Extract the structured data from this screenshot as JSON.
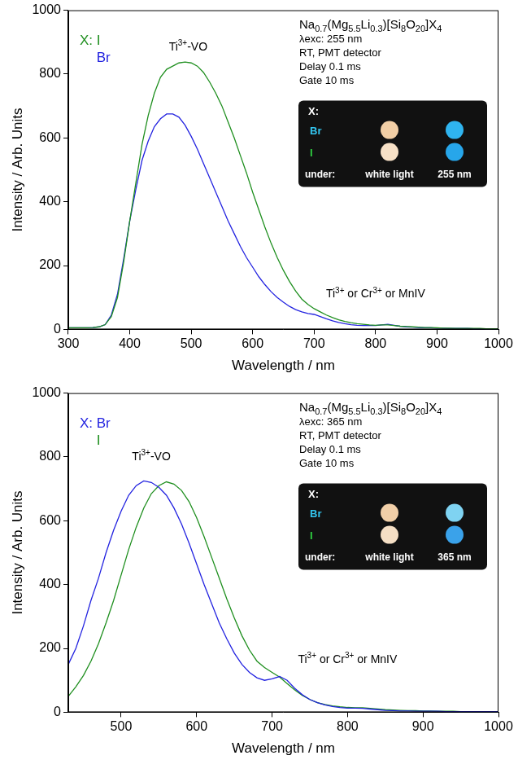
{
  "chart_data": [
    {
      "type": "line",
      "x_label": "Wavelength / nm",
      "y_label": "Intensity / Arb. Units",
      "xlim": [
        300,
        1000
      ],
      "ylim": [
        0,
        1000
      ],
      "xticks": [
        300,
        400,
        500,
        600,
        700,
        800,
        900,
        1000
      ],
      "yticks": [
        0,
        200,
        400,
        600,
        800,
        1000
      ],
      "grid": false,
      "legend": "top left",
      "legend_title": "X:",
      "info": [
        "Na0.7(Mg5.5Li0.3)[Si8O20]X4",
        "λexc: 255 nm",
        "RT, PMT detector",
        "Delay 0.1 ms",
        "Gate 10 ms"
      ],
      "inset": {
        "title": "X:",
        "rows": [
          "Br",
          "I"
        ],
        "footer": [
          "under:",
          "white light",
          "255 nm"
        ]
      },
      "annotations": [
        {
          "text": "Ti3+-VO",
          "x": 495,
          "y": 875
        },
        {
          "text": "Ti3+ or Cr3+ or MnIV",
          "x": 800,
          "y": 100
        }
      ],
      "x": [
        300,
        310,
        320,
        330,
        340,
        350,
        360,
        370,
        380,
        390,
        400,
        410,
        420,
        430,
        440,
        450,
        460,
        470,
        480,
        490,
        500,
        510,
        520,
        530,
        540,
        550,
        560,
        570,
        580,
        590,
        600,
        610,
        620,
        630,
        640,
        650,
        660,
        670,
        680,
        690,
        700,
        710,
        720,
        730,
        740,
        750,
        760,
        770,
        780,
        790,
        800,
        810,
        820,
        830,
        840,
        850,
        860,
        870,
        880,
        890,
        900,
        910,
        920,
        930,
        940,
        950,
        960,
        970,
        980,
        990,
        1000
      ],
      "series": [
        {
          "name": "I",
          "color": "#1f8f1f",
          "values": [
            5,
            5,
            5,
            5,
            6,
            8,
            15,
            40,
            100,
            210,
            340,
            460,
            580,
            670,
            740,
            790,
            815,
            825,
            835,
            838,
            835,
            825,
            805,
            775,
            740,
            700,
            650,
            600,
            545,
            490,
            430,
            375,
            320,
            270,
            225,
            185,
            150,
            120,
            95,
            78,
            65,
            55,
            45,
            37,
            30,
            25,
            21,
            18,
            16,
            14,
            13,
            14,
            14,
            12,
            10,
            9,
            8,
            7,
            6,
            6,
            5,
            4,
            4,
            3,
            3,
            3,
            3,
            3,
            2,
            2,
            2
          ]
        },
        {
          "name": "Br",
          "color": "#2323e0",
          "values": [
            5,
            5,
            5,
            5,
            6,
            8,
            15,
            45,
            110,
            220,
            340,
            440,
            530,
            590,
            635,
            660,
            675,
            675,
            665,
            640,
            605,
            565,
            520,
            475,
            430,
            385,
            340,
            300,
            260,
            225,
            195,
            165,
            140,
            118,
            100,
            85,
            72,
            62,
            55,
            50,
            47,
            40,
            33,
            27,
            22,
            18,
            15,
            13,
            12,
            12,
            12,
            14,
            16,
            13,
            10,
            8,
            7,
            6,
            5,
            5,
            4,
            4,
            3,
            3,
            3,
            3,
            2,
            2,
            2,
            2,
            2
          ]
        }
      ]
    },
    {
      "type": "line",
      "x_label": "Wavelength / nm",
      "y_label": "Intensity / Arb. Units",
      "xlim": [
        430,
        1000
      ],
      "ylim": [
        0,
        1000
      ],
      "xticks": [
        500,
        600,
        700,
        800,
        900,
        1000
      ],
      "yticks": [
        0,
        200,
        400,
        600,
        800,
        1000
      ],
      "grid": false,
      "legend": "top left",
      "legend_title": "X:",
      "info": [
        "Na0.7(Mg5.5Li0.3)[Si8O20]X4",
        "λexc: 365 nm",
        "RT, PMT detector",
        "Delay 0.1 ms",
        "Gate 10 ms"
      ],
      "inset": {
        "title": "X:",
        "rows": [
          "Br",
          "I"
        ],
        "footer": [
          "under:",
          "white light",
          "365 nm"
        ]
      },
      "annotations": [
        {
          "text": "Ti3+-VO",
          "x": 540,
          "y": 790
        },
        {
          "text": "Ti3+ or Cr3+ or MnIV",
          "x": 800,
          "y": 155
        }
      ],
      "x": [
        430,
        440,
        450,
        460,
        470,
        480,
        490,
        500,
        510,
        520,
        530,
        540,
        550,
        560,
        570,
        580,
        590,
        600,
        610,
        620,
        630,
        640,
        650,
        660,
        670,
        680,
        690,
        700,
        710,
        720,
        730,
        740,
        750,
        760,
        770,
        780,
        790,
        800,
        810,
        820,
        830,
        840,
        850,
        860,
        870,
        880,
        890,
        900,
        910,
        920,
        930,
        940,
        950,
        960,
        970,
        980,
        990,
        1000
      ],
      "series": [
        {
          "name": "Br",
          "color": "#2323e0",
          "values": [
            150,
            200,
            270,
            350,
            420,
            500,
            570,
            630,
            680,
            710,
            725,
            720,
            705,
            680,
            640,
            590,
            530,
            465,
            400,
            340,
            280,
            230,
            185,
            150,
            125,
            108,
            100,
            105,
            112,
            100,
            75,
            55,
            40,
            30,
            23,
            18,
            15,
            13,
            13,
            12,
            10,
            8,
            6,
            5,
            4,
            4,
            3,
            3,
            3,
            3,
            2,
            2,
            2,
            2,
            2,
            2,
            2,
            2
          ]
        },
        {
          "name": "I",
          "color": "#1f8f1f",
          "values": [
            50,
            80,
            115,
            160,
            215,
            280,
            350,
            430,
            510,
            580,
            640,
            685,
            710,
            722,
            715,
            695,
            660,
            610,
            550,
            485,
            420,
            355,
            295,
            240,
            195,
            160,
            140,
            125,
            110,
            90,
            70,
            53,
            40,
            30,
            24,
            20,
            17,
            15,
            14,
            14,
            12,
            10,
            8,
            7,
            6,
            5,
            5,
            4,
            4,
            3,
            3,
            3,
            2,
            2,
            2,
            2,
            2,
            2
          ]
        }
      ]
    }
  ]
}
